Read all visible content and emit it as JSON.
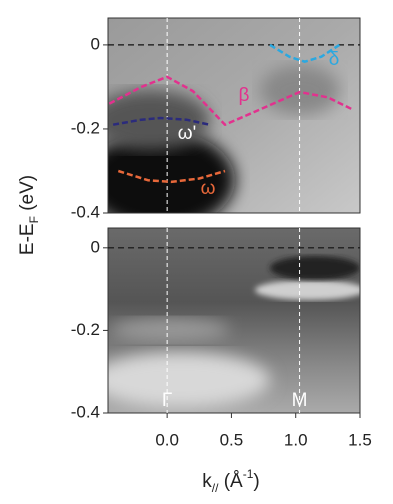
{
  "chart_data": [
    {
      "type": "image",
      "xlim": [
        -0.46,
        1.5
      ],
      "ylim": [
        -0.4,
        0.064
      ],
      "yticks": [
        0,
        -0.2,
        -0.4
      ],
      "fermi_level": 0,
      "vlines": [
        0,
        1.03
      ],
      "ylabel": [
        "E-E",
        "F",
        " (eV)"
      ],
      "curves": [
        {
          "label": "β",
          "color": "#e2318e",
          "x": [
            -0.45,
            -0.2,
            0,
            0.2,
            0.45,
            0.75,
            1.03,
            1.25,
            1.45
          ],
          "y": [
            -0.14,
            -0.1,
            -0.076,
            -0.11,
            -0.19,
            -0.15,
            -0.112,
            -0.125,
            -0.155
          ]
        },
        {
          "label": "δ",
          "color": "#2ba8e0",
          "x": [
            0.8,
            0.95,
            1.07,
            1.2,
            1.34
          ],
          "y": [
            0,
            -0.028,
            -0.04,
            -0.028,
            0
          ]
        },
        {
          "label": "ω'",
          "color": "#2b2b7c",
          "x": [
            -0.42,
            -0.2,
            -0.05,
            0.15,
            0.33
          ],
          "y": [
            -0.19,
            -0.178,
            -0.174,
            -0.178,
            -0.19
          ]
        },
        {
          "label": "ω",
          "color": "#e8683a",
          "x": [
            -0.38,
            -0.15,
            0.03,
            0.25,
            0.45
          ],
          "y": [
            -0.3,
            -0.322,
            -0.326,
            -0.318,
            -0.3
          ]
        }
      ]
    },
    {
      "type": "image",
      "xlim": [
        -0.46,
        1.5
      ],
      "ylim": [
        -0.4,
        0.048
      ],
      "yticks": [
        0,
        -0.2,
        -0.4
      ],
      "xticks": [
        {
          "value": 0,
          "label": "0.0"
        },
        0.5,
        {
          "value": 1,
          "label": "1.0"
        },
        {
          "value": 1.5,
          "label": "1.5"
        }
      ],
      "fermi_level": 0,
      "vlines": [
        0,
        1.03
      ],
      "annotations": [
        "Γ",
        "M"
      ],
      "xlabel": [
        "k",
        "//",
        " (Å",
        "-1",
        ")"
      ]
    }
  ]
}
